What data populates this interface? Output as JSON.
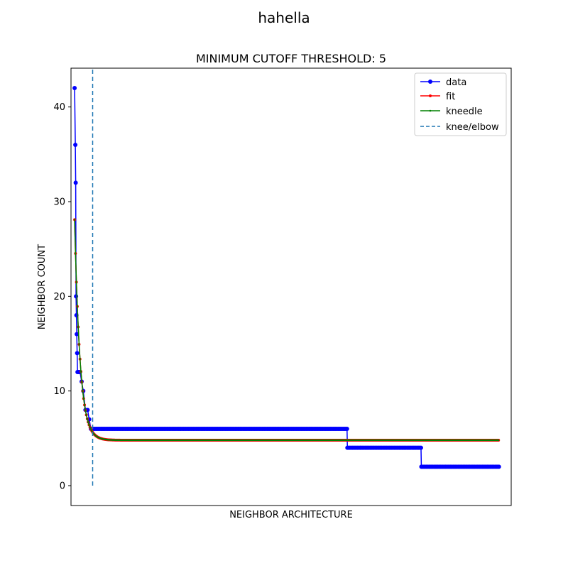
{
  "chart_data": {
    "type": "line",
    "suptitle": "hahella",
    "title": "MINIMUM CUTOFF THRESHOLD: 5",
    "xlabel": "NEIGHBOR ARCHITECTURE",
    "ylabel": "NEIGHBOR COUNT",
    "xlim": [
      -1,
      121
    ],
    "ylim": [
      -2.1,
      44.1
    ],
    "yticks": [
      0,
      10,
      20,
      30,
      40
    ],
    "x_ticks_shown": false,
    "grid": false,
    "legend_placement": "top-right",
    "knee_x": 5,
    "knee_ymin": 0,
    "knee_ymax": 44,
    "series": [
      {
        "name": "data",
        "color": "#0000ff",
        "marker": "circle",
        "points": [
          [
            0,
            42
          ],
          [
            0.2,
            36
          ],
          [
            0.3,
            32
          ],
          [
            0.4,
            20
          ],
          [
            0.5,
            18
          ],
          [
            0.6,
            16
          ],
          [
            0.7,
            14
          ],
          [
            0.8,
            12
          ],
          [
            1.5,
            12
          ],
          [
            2.4,
            10
          ],
          [
            3,
            8
          ],
          [
            3.6,
            8
          ],
          [
            4.5,
            6
          ],
          [
            75.5,
            6
          ],
          [
            75.6,
            4
          ],
          [
            96,
            4
          ],
          [
            96.1,
            2
          ],
          [
            117.6,
            2
          ]
        ]
      },
      {
        "name": "fit",
        "color": "#ff0000",
        "marker": "small-dot",
        "fit_model": {
          "a": 23.3,
          "k": 1.5,
          "c": 4.8,
          "x_start": 0,
          "x_end": 117.6
        }
      },
      {
        "name": "kneedle",
        "color": "#008000",
        "marker": "tiny-dot",
        "fit_model": {
          "a": 23.3,
          "k": 1.5,
          "c": 4.8,
          "x_start": 0,
          "x_end": 117.6
        }
      }
    ],
    "knee_line": {
      "name": "knee/elbow",
      "color": "#1f77b4",
      "style": "dashed"
    }
  }
}
